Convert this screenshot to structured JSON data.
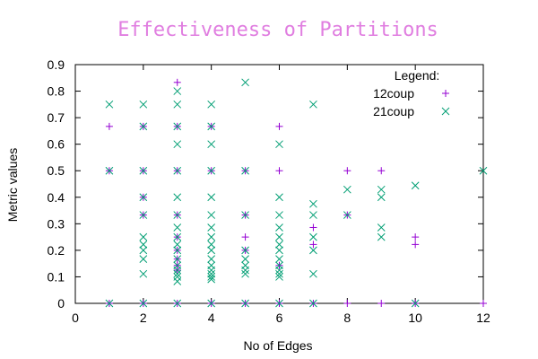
{
  "chart_data": {
    "type": "scatter",
    "title": "Effectiveness of Partitions",
    "xlabel": "No of Edges",
    "ylabel": "Metric values",
    "xlim": [
      0,
      12
    ],
    "ylim": [
      0,
      0.9
    ],
    "xticks": [
      0,
      2,
      4,
      6,
      8,
      10,
      12
    ],
    "yticks": [
      0,
      0.1,
      0.2,
      0.3,
      0.4,
      0.5,
      0.6,
      0.7,
      0.8,
      0.9
    ],
    "grid": false,
    "legend": {
      "title": "Legend:",
      "placement": "top-right"
    },
    "series": [
      {
        "name": "12coup",
        "marker": "plus",
        "color": "#9400d3",
        "points": [
          [
            1,
            0
          ],
          [
            1,
            0.5
          ],
          [
            1,
            0.667
          ],
          [
            2,
            0
          ],
          [
            2,
            0.333
          ],
          [
            2,
            0.4
          ],
          [
            2,
            0.5
          ],
          [
            2,
            0.667
          ],
          [
            3,
            0
          ],
          [
            3,
            0.125
          ],
          [
            3,
            0.143
          ],
          [
            3,
            0.167
          ],
          [
            3,
            0.2
          ],
          [
            3,
            0.25
          ],
          [
            3,
            0.333
          ],
          [
            3,
            0.5
          ],
          [
            3,
            0.667
          ],
          [
            3,
            0.833
          ],
          [
            4,
            0
          ],
          [
            4,
            0.5
          ],
          [
            4,
            0.667
          ],
          [
            5,
            0
          ],
          [
            5,
            0.2
          ],
          [
            5,
            0.25
          ],
          [
            5,
            0.333
          ],
          [
            5,
            0.5
          ],
          [
            6,
            0
          ],
          [
            6,
            0.143
          ],
          [
            6,
            0.5
          ],
          [
            6,
            0.667
          ],
          [
            7,
            0
          ],
          [
            7,
            0.222
          ],
          [
            7,
            0.286
          ],
          [
            8,
            0
          ],
          [
            8,
            0.333
          ],
          [
            8,
            0.5
          ],
          [
            9,
            0
          ],
          [
            9,
            0.5
          ],
          [
            10,
            0
          ],
          [
            10,
            0.222
          ],
          [
            10,
            0.25
          ],
          [
            12,
            0
          ]
        ]
      },
      {
        "name": "21coup",
        "marker": "cross",
        "color": "#009e73",
        "points": [
          [
            1,
            0
          ],
          [
            1,
            0.5
          ],
          [
            1,
            0.75
          ],
          [
            2,
            0
          ],
          [
            2,
            0.111
          ],
          [
            2,
            0.167
          ],
          [
            2,
            0.2
          ],
          [
            2,
            0.222
          ],
          [
            2,
            0.25
          ],
          [
            2,
            0.333
          ],
          [
            2,
            0.4
          ],
          [
            2,
            0.5
          ],
          [
            2,
            0.667
          ],
          [
            2,
            0.75
          ],
          [
            3,
            0
          ],
          [
            3,
            0.083
          ],
          [
            3,
            0.1
          ],
          [
            3,
            0.111
          ],
          [
            3,
            0.125
          ],
          [
            3,
            0.143
          ],
          [
            3,
            0.167
          ],
          [
            3,
            0.2
          ],
          [
            3,
            0.222
          ],
          [
            3,
            0.25
          ],
          [
            3,
            0.286
          ],
          [
            3,
            0.333
          ],
          [
            3,
            0.4
          ],
          [
            3,
            0.5
          ],
          [
            3,
            0.6
          ],
          [
            3,
            0.667
          ],
          [
            3,
            0.75
          ],
          [
            3,
            0.8
          ],
          [
            4,
            0
          ],
          [
            4,
            0.091
          ],
          [
            4,
            0.1
          ],
          [
            4,
            0.111
          ],
          [
            4,
            0.125
          ],
          [
            4,
            0.143
          ],
          [
            4,
            0.167
          ],
          [
            4,
            0.2
          ],
          [
            4,
            0.222
          ],
          [
            4,
            0.25
          ],
          [
            4,
            0.286
          ],
          [
            4,
            0.333
          ],
          [
            4,
            0.4
          ],
          [
            4,
            0.5
          ],
          [
            4,
            0.6
          ],
          [
            4,
            0.667
          ],
          [
            4,
            0.75
          ],
          [
            5,
            0
          ],
          [
            5,
            0.111
          ],
          [
            5,
            0.125
          ],
          [
            5,
            0.143
          ],
          [
            5,
            0.167
          ],
          [
            5,
            0.2
          ],
          [
            5,
            0.333
          ],
          [
            5,
            0.5
          ],
          [
            5,
            0.833
          ],
          [
            6,
            0
          ],
          [
            6,
            0.1
          ],
          [
            6,
            0.111
          ],
          [
            6,
            0.125
          ],
          [
            6,
            0.143
          ],
          [
            6,
            0.167
          ],
          [
            6,
            0.2
          ],
          [
            6,
            0.222
          ],
          [
            6,
            0.25
          ],
          [
            6,
            0.286
          ],
          [
            6,
            0.333
          ],
          [
            6,
            0.4
          ],
          [
            6,
            0.6
          ],
          [
            7,
            0
          ],
          [
            7,
            0.111
          ],
          [
            7,
            0.2
          ],
          [
            7,
            0.25
          ],
          [
            7,
            0.333
          ],
          [
            7,
            0.375
          ],
          [
            7,
            0.75
          ],
          [
            8,
            0.333
          ],
          [
            8,
            0.429
          ],
          [
            9,
            0.25
          ],
          [
            9,
            0.286
          ],
          [
            9,
            0.4
          ],
          [
            9,
            0.429
          ],
          [
            10,
            0
          ],
          [
            10,
            0.444
          ],
          [
            12,
            0.5
          ]
        ]
      }
    ]
  }
}
